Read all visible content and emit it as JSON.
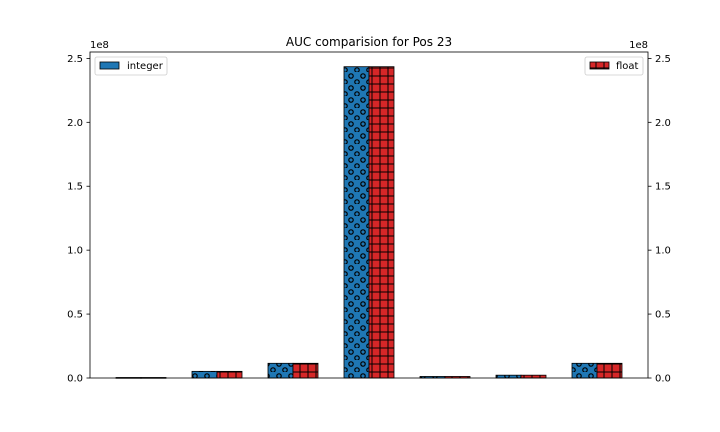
{
  "chart_data": {
    "type": "bar",
    "title": "AUC comparision for Pos 23",
    "xlabel": "",
    "ylabel": "",
    "categories": [
      "",
      "",
      "",
      "",
      "",
      "",
      ""
    ],
    "series": [
      {
        "name": "integer",
        "axis": "left",
        "color": "#1f77b4",
        "hatch": "o",
        "values": [
          400000,
          5200000,
          11500000,
          243500000,
          1200000,
          2200000,
          11500000
        ]
      },
      {
        "name": "float",
        "axis": "right",
        "color": "#d62728",
        "hatch": "+",
        "values": [
          400000,
          5200000,
          11500000,
          243500000,
          1200000,
          2200000,
          11500000
        ]
      }
    ],
    "ylim": [
      0,
      255000000
    ],
    "yticks": [
      0,
      50000000,
      100000000,
      150000000,
      200000000,
      250000000
    ],
    "ytick_labels": [
      "0.0",
      "0.5",
      "1.0",
      "1.5",
      "2.0",
      "2.5"
    ],
    "y_offset_text": "1e8",
    "legends": [
      {
        "series": "integer",
        "placement": "top-left"
      },
      {
        "series": "float",
        "placement": "top-right"
      }
    ],
    "grid": false
  }
}
